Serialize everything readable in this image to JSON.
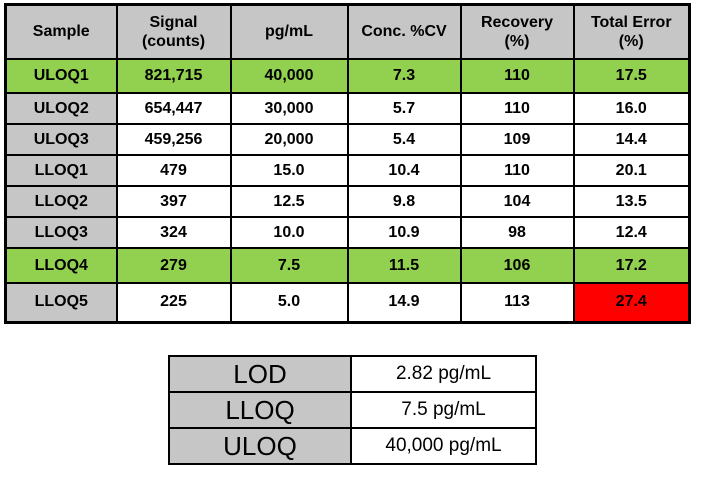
{
  "colors": {
    "background": "#FFFFFF",
    "header_gray": "#C6C6C6",
    "highlight_green": "#92D050",
    "alert_red": "#FF0000",
    "border_black": "#000000",
    "text_black": "#000000"
  },
  "main_table": {
    "columns": [
      "Sample",
      "Signal\n(counts)",
      "pg/mL",
      "Conc. %CV",
      "Recovery\n(%)",
      "Total Error\n(%)"
    ],
    "rows": [
      {
        "cells": [
          "ULOQ1",
          "821,715",
          "40,000",
          "7.3",
          "110",
          "17.5"
        ],
        "highlights": [
          "green",
          "green",
          "green",
          "green",
          "green",
          "green"
        ]
      },
      {
        "cells": [
          "ULOQ2",
          "654,447",
          "30,000",
          "5.7",
          "110",
          "16.0"
        ],
        "highlights": [
          "gray",
          "",
          "",
          "",
          "",
          ""
        ]
      },
      {
        "cells": [
          "ULOQ3",
          "459,256",
          "20,000",
          "5.4",
          "109",
          "14.4"
        ],
        "highlights": [
          "gray",
          "",
          "",
          "",
          "",
          ""
        ]
      },
      {
        "cells": [
          "LLOQ1",
          "479",
          "15.0",
          "10.4",
          "110",
          "20.1"
        ],
        "highlights": [
          "gray",
          "",
          "",
          "",
          "",
          ""
        ]
      },
      {
        "cells": [
          "LLOQ2",
          "397",
          "12.5",
          "9.8",
          "104",
          "13.5"
        ],
        "highlights": [
          "gray",
          "",
          "",
          "",
          "",
          ""
        ]
      },
      {
        "cells": [
          "LLOQ3",
          "324",
          "10.0",
          "10.9",
          "98",
          "12.4"
        ],
        "highlights": [
          "gray",
          "",
          "",
          "",
          "",
          ""
        ]
      },
      {
        "cells": [
          "LLOQ4",
          "279",
          "7.5",
          "11.5",
          "106",
          "17.2"
        ],
        "highlights": [
          "green",
          "green",
          "green",
          "green",
          "green",
          "green"
        ]
      },
      {
        "cells": [
          "LLOQ5",
          "225",
          "5.0",
          "14.9",
          "113",
          "27.4"
        ],
        "highlights": [
          "gray",
          "",
          "",
          "",
          "",
          "red"
        ]
      }
    ]
  },
  "summary_table": {
    "rows": [
      {
        "label": "LOD",
        "value": "2.82 pg/mL"
      },
      {
        "label": "LLOQ",
        "value": "7.5 pg/mL"
      },
      {
        "label": "ULOQ",
        "value": "40,000 pg/mL"
      }
    ]
  }
}
